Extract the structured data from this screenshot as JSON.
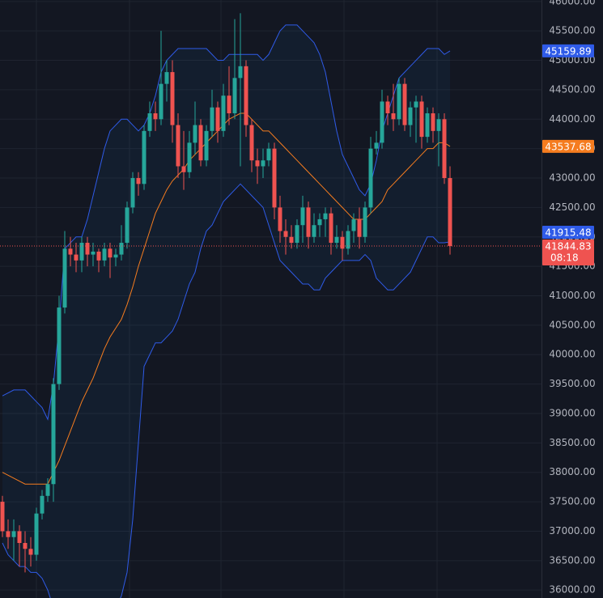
{
  "chart_data": {
    "type": "candlestick",
    "ylim": [
      35865,
      46025
    ],
    "yticks": [
      {
        "value": 36000,
        "label": "36000.00"
      },
      {
        "value": 36500,
        "label": "36500.00"
      },
      {
        "value": 37000,
        "label": "37000.00"
      },
      {
        "value": 37500,
        "label": "37500.00"
      },
      {
        "value": 38000,
        "label": "38000.00"
      },
      {
        "value": 38500,
        "label": "38500.00"
      },
      {
        "value": 39000,
        "label": "39000.00"
      },
      {
        "value": 39500,
        "label": "39500.00"
      },
      {
        "value": 40000,
        "label": "40000.00"
      },
      {
        "value": 40500,
        "label": "40500.00"
      },
      {
        "value": 41000,
        "label": "41000.00"
      },
      {
        "value": 41500,
        "label": "41500.00"
      },
      {
        "value": 42000,
        "label": "42000.00"
      },
      {
        "value": 42500,
        "label": "42500.00"
      },
      {
        "value": 43000,
        "label": "43000.00"
      },
      {
        "value": 43500,
        "label": "43500.00"
      },
      {
        "value": 44000,
        "label": "44000.00"
      },
      {
        "value": 44500,
        "label": "44500.00"
      },
      {
        "value": 45000,
        "label": "45000.00"
      },
      {
        "value": 45500,
        "label": "45500.00"
      },
      {
        "value": 46000,
        "label": "46000.00"
      }
    ],
    "grid": true,
    "up_color": "#26a69a",
    "down_color": "#ef5350",
    "open": [
      37500,
      37000,
      36900,
      37000,
      36800,
      36700,
      36600,
      37300,
      37600,
      37800,
      39500,
      40800,
      41800,
      41700,
      41600,
      41900,
      41700,
      41750,
      41600,
      41800,
      41650,
      41700,
      41900,
      42500,
      43000,
      42900,
      43800,
      44100,
      44000,
      44600,
      44800,
      43900,
      43200,
      43100,
      43600,
      43900,
      43300,
      43800,
      44200,
      43800,
      44400,
      44100,
      44700,
      44900,
      43900,
      43300,
      43200,
      43300,
      43500,
      42500,
      42100,
      42000,
      41900,
      42200,
      42500,
      42000,
      42200,
      42300,
      42400,
      41900,
      42000,
      41800,
      42100,
      42300,
      42000,
      42500,
      43500,
      43600,
      44300,
      44100,
      44000,
      44600,
      43900,
      44200,
      44300,
      43700,
      44100,
      43800,
      44000,
      43000
    ],
    "high": [
      37600,
      37200,
      37200,
      37100,
      37000,
      36900,
      37400,
      37700,
      37900,
      39600,
      41000,
      42100,
      42000,
      41900,
      42000,
      42000,
      41900,
      41800,
      41900,
      41900,
      41800,
      42200,
      42600,
      43100,
      43100,
      43900,
      44300,
      44300,
      45500,
      45000,
      45000,
      44100,
      43800,
      43800,
      44300,
      44000,
      43900,
      44500,
      44300,
      44600,
      44900,
      45700,
      45800,
      45000,
      44000,
      43500,
      43500,
      43600,
      43600,
      42700,
      42300,
      42200,
      42300,
      42700,
      42600,
      42400,
      42400,
      42500,
      42500,
      42200,
      42100,
      42200,
      42400,
      42500,
      42600,
      43700,
      43800,
      44500,
      44400,
      44600,
      44700,
      44700,
      44300,
      44400,
      44400,
      44200,
      44200,
      44100,
      44100,
      43200
    ],
    "low": [
      36900,
      36700,
      36500,
      36400,
      36300,
      36400,
      36500,
      37200,
      37500,
      37500,
      39400,
      40700,
      41500,
      41400,
      41400,
      41500,
      41500,
      41400,
      41500,
      41300,
      41500,
      41600,
      41800,
      42400,
      42700,
      42800,
      43700,
      43800,
      43900,
      44300,
      43600,
      43000,
      42800,
      43000,
      43400,
      43200,
      43200,
      43700,
      43600,
      43700,
      43900,
      44000,
      43200,
      43700,
      43100,
      42900,
      43000,
      43200,
      42300,
      41900,
      41700,
      41800,
      41800,
      41900,
      41800,
      41900,
      42000,
      42000,
      41700,
      41800,
      41600,
      41700,
      41900,
      41800,
      41900,
      42400,
      43400,
      43500,
      43900,
      43800,
      43900,
      43800,
      43700,
      43600,
      43500,
      43600,
      43600,
      43200,
      42900,
      41700
    ],
    "close": [
      37000,
      36900,
      37000,
      36800,
      36700,
      36600,
      37300,
      37600,
      37800,
      39500,
      40800,
      41800,
      41700,
      41600,
      41900,
      41700,
      41750,
      41600,
      41800,
      41650,
      41700,
      41900,
      42500,
      43000,
      42900,
      43800,
      44100,
      44000,
      44600,
      44800,
      43900,
      43200,
      43100,
      43600,
      43900,
      43300,
      43800,
      44200,
      43800,
      44400,
      44100,
      44700,
      44900,
      43900,
      43300,
      43200,
      43300,
      43500,
      42500,
      42100,
      42000,
      41900,
      42200,
      42500,
      42000,
      42200,
      42300,
      42400,
      41900,
      42000,
      41800,
      42100,
      42300,
      42000,
      42500,
      43500,
      43600,
      44300,
      44100,
      44000,
      44600,
      43900,
      44200,
      44300,
      43700,
      44100,
      43800,
      44000,
      43000,
      41844.83
    ],
    "bands": {
      "upper": {
        "color": "#2f5be8",
        "values": [
          39300,
          39350,
          39400,
          39400,
          39400,
          39300,
          39200,
          39100,
          38900,
          39500,
          40500,
          41800,
          41900,
          42000,
          42000,
          42300,
          42700,
          43100,
          43500,
          43800,
          43900,
          44000,
          44000,
          43900,
          43800,
          43900,
          44100,
          44400,
          44800,
          45000,
          45100,
          45200,
          45200,
          45200,
          45200,
          45200,
          45200,
          45100,
          45000,
          45000,
          45100,
          45100,
          45100,
          45100,
          45100,
          45100,
          45000,
          45100,
          45300,
          45500,
          45600,
          45600,
          45600,
          45500,
          45400,
          45300,
          45100,
          44800,
          44300,
          43800,
          43400,
          43200,
          43000,
          42800,
          42700,
          42900,
          43300,
          43800,
          44100,
          44400,
          44700,
          44800,
          44900,
          45000,
          45100,
          45200,
          45200,
          45200,
          45100,
          45159.89
        ]
      },
      "basis": {
        "color": "#f57c1f",
        "values": [
          38000,
          37950,
          37900,
          37850,
          37800,
          37800,
          37800,
          37800,
          37800,
          38000,
          38200,
          38450,
          38700,
          38950,
          39200,
          39400,
          39600,
          39850,
          40100,
          40300,
          40450,
          40600,
          40850,
          41150,
          41500,
          41800,
          42100,
          42400,
          42600,
          42800,
          42950,
          43050,
          43150,
          43300,
          43400,
          43500,
          43600,
          43700,
          43800,
          43900,
          44000,
          44050,
          44100,
          44100,
          44000,
          43900,
          43800,
          43800,
          43700,
          43600,
          43500,
          43400,
          43300,
          43200,
          43100,
          43000,
          42900,
          42800,
          42700,
          42600,
          42500,
          42400,
          42300,
          42300,
          42300,
          42400,
          42500,
          42600,
          42800,
          42900,
          43000,
          43100,
          43200,
          43300,
          43400,
          43500,
          43500,
          43600,
          43600,
          43537.68
        ]
      },
      "lower": {
        "color": "#2f5be8",
        "values": [
          36800,
          36600,
          36500,
          36400,
          36400,
          36300,
          36300,
          36200,
          36000,
          35700,
          35600,
          35600,
          35600,
          35600,
          35600,
          35600,
          35600,
          35600,
          35600,
          35600,
          35700,
          35900,
          36300,
          37200,
          38500,
          39800,
          40000,
          40200,
          40200,
          40300,
          40400,
          40600,
          40900,
          41200,
          41400,
          41800,
          42100,
          42200,
          42400,
          42600,
          42700,
          42800,
          42900,
          42800,
          42700,
          42600,
          42500,
          42200,
          41900,
          41600,
          41500,
          41400,
          41300,
          41200,
          41200,
          41100,
          41100,
          41300,
          41400,
          41500,
          41600,
          41600,
          41600,
          41600,
          41700,
          41600,
          41300,
          41200,
          41100,
          41100,
          41200,
          41300,
          41400,
          41600,
          41800,
          42000,
          42000,
          41900,
          41900,
          41915.48
        ]
      }
    },
    "countdown": "08:18"
  }
}
